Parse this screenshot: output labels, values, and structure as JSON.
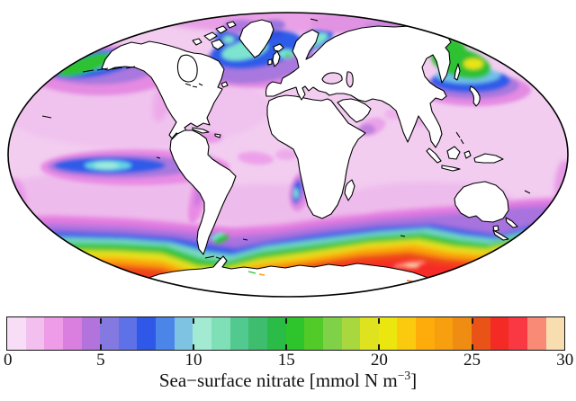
{
  "figure": {
    "title_prefix": "Sea−surface nitrate [mmol N m",
    "title_superscript": "−3",
    "title_suffix": "]"
  },
  "colorbar": {
    "min": 0,
    "max": 30,
    "ticks": [
      0,
      5,
      10,
      15,
      20,
      25,
      30
    ],
    "border_color": "#151515",
    "segment_colors": [
      "#f7ddf5",
      "#f3bfee",
      "#ee9ce7",
      "#da7edf",
      "#b274dc",
      "#8478e1",
      "#5f71e7",
      "#2f58e8",
      "#4b85e8",
      "#7fc3e2",
      "#a3ead2",
      "#7fe0b8",
      "#52c98e",
      "#3dbd6d",
      "#2abc47",
      "#2ec42b",
      "#52ca28",
      "#7fd148",
      "#a8d83e",
      "#dfe21e",
      "#ece60f",
      "#fbca0e",
      "#fdac0c",
      "#f89f10",
      "#ee8d12",
      "#ea5317",
      "#f42a24",
      "#f93844",
      "#f98a76",
      "#f8ddb0"
    ]
  },
  "map": {
    "projection": "Mollweide",
    "ocean_base_color": "#f2cdf0",
    "land_color": "#ffffff",
    "outline_color": "#000000"
  },
  "chart_data": {
    "type": "heatmap",
    "title": "Sea−surface nitrate [mmol N m−3]",
    "units": "mmol N m−3",
    "layout": "global ocean map (Mollweide projection), horizontal colorbar legend below",
    "colorbar_range": [
      0,
      30
    ],
    "colorbar_ticks": [
      0,
      5,
      10,
      15,
      20,
      25,
      30
    ],
    "colorbar_segments": 30,
    "land": "white (no data)",
    "regions": [
      {
        "region": "Subtropical gyres and most low/mid-latitude ocean",
        "nitrate": 0.5
      },
      {
        "region": "Equatorial Pacific upwelling tongue",
        "nitrate": 8,
        "peak": 10
      },
      {
        "region": "Subarctic NE Pacific (Gulf of Alaska band)",
        "nitrate": 13
      },
      {
        "region": "NW Pacific off Kamchatka / Bering Sea",
        "nitrate": 16,
        "peak": 21
      },
      {
        "region": "Subpolar North Atlantic (Labrador/Irminger Seas)",
        "nitrate": 9,
        "peak": 12
      },
      {
        "region": "Norwegian Sea",
        "nitrate": 10
      },
      {
        "region": "Arctic Ocean margin",
        "nitrate": 3
      },
      {
        "region": "Benguela upwelling (SW African coast)",
        "nitrate": 9
      },
      {
        "region": "Somali coast / NW Arabian Sea",
        "nitrate": 4
      },
      {
        "region": "Southern Ocean ~40–45°S",
        "nitrate": 3
      },
      {
        "region": "Southern Ocean ~45–50°S",
        "nitrate": 7
      },
      {
        "region": "Southern Ocean ~50–55°S",
        "nitrate": 13
      },
      {
        "region": "Southern Ocean ~55–60°S",
        "nitrate": 20
      },
      {
        "region": "Antarctic coastal zone",
        "nitrate": 27
      }
    ]
  }
}
